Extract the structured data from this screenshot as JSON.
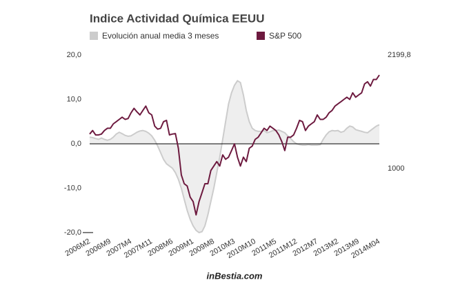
{
  "chart_data": {
    "type": "area-line",
    "title": "Indice Actividad Química EEUU",
    "footer": "inBestia.com",
    "categories": [
      "2006M2",
      null,
      null,
      null,
      null,
      null,
      null,
      "2006M9",
      null,
      null,
      null,
      null,
      null,
      null,
      "2007M4",
      null,
      null,
      null,
      null,
      null,
      null,
      "2007M11",
      null,
      null,
      null,
      null,
      null,
      null,
      "2008M6",
      null,
      null,
      null,
      null,
      null,
      null,
      "2009M1",
      null,
      null,
      null,
      null,
      null,
      null,
      "2009M8",
      null,
      null,
      null,
      null,
      null,
      null,
      "2010M3",
      null,
      null,
      null,
      null,
      null,
      null,
      "2010M10",
      null,
      null,
      null,
      null,
      null,
      null,
      "2011M5",
      null,
      null,
      null,
      null,
      null,
      null,
      "2011M12",
      null,
      null,
      null,
      null,
      null,
      null,
      "2012M7",
      null,
      null,
      null,
      null,
      null,
      null,
      "2013M2",
      null,
      null,
      null,
      null,
      null,
      null,
      "2013M9",
      null,
      null,
      null,
      null,
      null,
      null,
      "2014M04"
    ],
    "series": [
      {
        "name": "Evolución anual media 3 meses",
        "color": "#cccccc",
        "fill": "#eeeeee",
        "values": [
          1.5,
          1.4,
          1.2,
          1.0,
          1.3,
          1.0,
          0.8,
          1.0,
          1.5,
          2.2,
          2.6,
          2.3,
          1.9,
          1.7,
          1.8,
          2.2,
          2.6,
          2.9,
          3.0,
          2.8,
          2.4,
          1.8,
          0.8,
          -0.5,
          -2.0,
          -3.5,
          -4.5,
          -5.0,
          -5.5,
          -6.5,
          -8,
          -10,
          -12.5,
          -15,
          -17,
          -18.5,
          -19.5,
          -20,
          -19.8,
          -18.5,
          -16,
          -13,
          -10,
          -6.5,
          -3,
          1,
          5,
          9,
          11.5,
          13.2,
          14.2,
          13.8,
          11,
          7.5,
          5,
          3.5,
          3,
          2.8,
          2.8,
          3,
          2.5,
          2.7,
          3,
          3,
          3.1,
          2.8,
          2.5,
          1.8,
          1.2,
          0.5,
          0,
          -0.2,
          -0.3,
          -0.3,
          -0.2,
          -0.3,
          -0.3,
          -0.3,
          -0.2,
          1,
          2,
          2.7,
          3,
          2.9,
          3,
          2.6,
          2.8,
          3.5,
          4,
          3.8,
          3.2,
          3,
          2.8,
          2.6,
          2.5,
          3,
          3.5,
          4,
          4.3
        ]
      },
      {
        "name": "S&P 500",
        "color": "#6d1a3f",
        "axis": "y2",
        "values": [
          1365,
          1402,
          1356,
          1356,
          1365,
          1402,
          1426,
          1426,
          1473,
          1496,
          1520,
          1543,
          1520,
          1529,
          1590,
          1637,
          1599,
          1567,
          1614,
          1660,
          1590,
          1567,
          1449,
          1417,
          1426,
          1496,
          1510,
          1356,
          1365,
          1370,
          1215,
          933,
          840,
          816,
          699,
          652,
          511,
          652,
          746,
          840,
          840,
          980,
          1027,
          1074,
          1027,
          1145,
          1098,
          1121,
          1191,
          1262,
          1121,
          1027,
          1121,
          1074,
          1215,
          1238,
          1309,
          1332,
          1379,
          1426,
          1402,
          1449,
          1426,
          1402,
          1356,
          1285,
          1191,
          1332,
          1332,
          1356,
          1426,
          1510,
          1496,
          1402,
          1449,
          1473,
          1496,
          1567,
          1520,
          1520,
          1543,
          1590,
          1614,
          1660,
          1684,
          1707,
          1731,
          1754,
          1731,
          1801,
          1754,
          1778,
          1801,
          1895,
          1918,
          1872,
          1942,
          1942,
          1989
        ]
      }
    ],
    "ylim": [
      -20,
      20
    ],
    "yticks": [
      {
        "value": 20,
        "label": "20,0"
      },
      {
        "value": 10,
        "label": "10,0"
      },
      {
        "value": 0,
        "label": "0,0"
      },
      {
        "value": -10,
        "label": "-10,0"
      },
      {
        "value": -20,
        "label": "-20,0"
      }
    ],
    "y2lim": [
      324,
      2199.8
    ],
    "y2ticks": [
      {
        "value": 2199.8,
        "label": "2199,8"
      },
      1000
    ],
    "grid": false
  }
}
